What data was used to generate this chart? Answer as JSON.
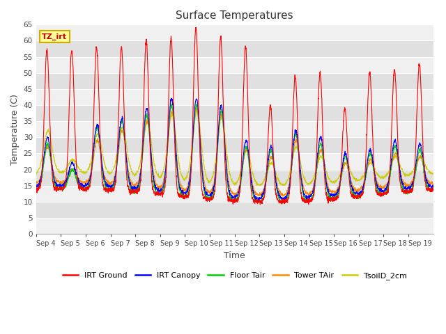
{
  "title": "Surface Temperatures",
  "xlabel": "Time",
  "ylabel": "Temperature (C)",
  "ylim": [
    0,
    65
  ],
  "yticks": [
    0,
    5,
    10,
    15,
    20,
    25,
    30,
    35,
    40,
    45,
    50,
    55,
    60,
    65
  ],
  "figsize": [
    6.4,
    4.8
  ],
  "dpi": 100,
  "fig_bg": "#e8e8e8",
  "plot_bg_light": "#f0f0f0",
  "plot_bg_dark": "#dcdcdc",
  "annotation_text": "TZ_irt",
  "annotation_bg": "#ffff99",
  "annotation_border": "#ccaa00",
  "series": [
    {
      "label": "IRT Ground",
      "color": "#ff0000",
      "lw": 1.0
    },
    {
      "label": "IRT Canopy",
      "color": "#0000ff",
      "lw": 1.0
    },
    {
      "label": "Floor Tair",
      "color": "#00cc00",
      "lw": 1.0
    },
    {
      "label": "Tower TAir",
      "color": "#ff8800",
      "lw": 1.0
    },
    {
      "label": "TsoilD_2cm",
      "color": "#cccc00",
      "lw": 1.0
    }
  ],
  "n_days": 16,
  "xtick_labels": [
    "Sep 4",
    "Sep 5",
    "Sep 6",
    "Sep 7",
    "Sep 8",
    "Sep 9",
    "Sep 10",
    "Sep 11",
    "Sep 12",
    "Sep 13",
    "Sep 14",
    "Sep 15",
    "Sep 16",
    "Sep 17",
    "Sep 18",
    "Sep 19"
  ],
  "ground_peaks": [
    57,
    57,
    58,
    58,
    60,
    61,
    64,
    61,
    58,
    40,
    49,
    50,
    39,
    50,
    51,
    53
  ],
  "canopy_peaks": [
    30,
    22,
    34,
    36,
    39,
    42,
    42,
    40,
    29,
    27,
    32,
    30,
    25,
    26,
    29,
    28
  ],
  "floor_peaks": [
    28,
    20,
    33,
    35,
    37,
    40,
    40,
    38,
    27,
    26,
    31,
    28,
    24,
    25,
    27,
    26
  ],
  "tower_peaks": [
    27,
    20,
    29,
    32,
    35,
    38,
    39,
    37,
    26,
    24,
    29,
    26,
    22,
    23,
    25,
    24
  ],
  "soil_peaks": [
    32,
    23,
    31,
    33,
    35,
    37,
    38,
    36,
    26,
    22,
    27,
    24,
    22,
    22,
    24,
    24
  ],
  "night_base": 12,
  "night_min": 7
}
